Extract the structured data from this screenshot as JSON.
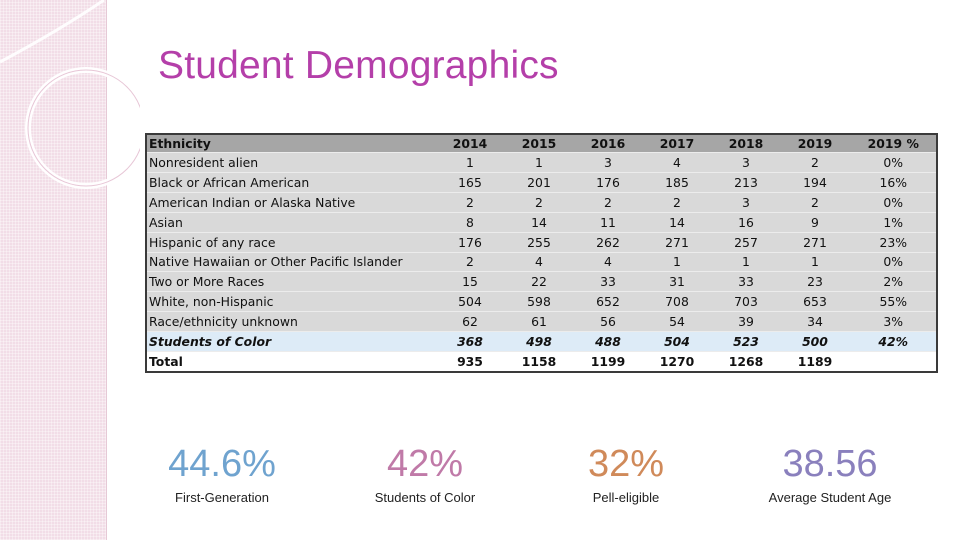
{
  "title": "Student Demographics",
  "table": {
    "headers": [
      "Ethnicity",
      "2014",
      "2015",
      "2016",
      "2017",
      "2018",
      "2019",
      "2019 %"
    ],
    "rows": [
      [
        "Nonresident alien",
        "1",
        "1",
        "3",
        "4",
        "3",
        "2",
        "0%"
      ],
      [
        "Black or African American",
        "165",
        "201",
        "176",
        "185",
        "213",
        "194",
        "16%"
      ],
      [
        "American Indian or Alaska Native",
        "2",
        "2",
        "2",
        "2",
        "3",
        "2",
        "0%"
      ],
      [
        "Asian",
        "8",
        "14",
        "11",
        "14",
        "16",
        "9",
        "1%"
      ],
      [
        "Hispanic of any race",
        "176",
        "255",
        "262",
        "271",
        "257",
        "271",
        "23%"
      ],
      [
        "Native Hawaiian or Other Pacific Islander",
        "2",
        "4",
        "4",
        "1",
        "1",
        "1",
        "0%"
      ],
      [
        "Two or More Races",
        "15",
        "22",
        "33",
        "31",
        "33",
        "23",
        "2%"
      ],
      [
        "White, non-Hispanic",
        "504",
        "598",
        "652",
        "708",
        "703",
        "653",
        "55%"
      ],
      [
        "Race/ethnicity unknown",
        "62",
        "61",
        "56",
        "54",
        "39",
        "34",
        "3%"
      ],
      [
        "Students of Color",
        "368",
        "498",
        "488",
        "504",
        "523",
        "500",
        "42%"
      ],
      [
        "Total",
        "935",
        "1158",
        "1199",
        "1270",
        "1268",
        "1189",
        ""
      ]
    ]
  },
  "stats": [
    {
      "value": "44.6%",
      "label": "First-Generation",
      "color": "#6fa3cf"
    },
    {
      "value": "42%",
      "label": "Students of Color",
      "color": "#c07aa8"
    },
    {
      "value": "32%",
      "label": "Pell-eligible",
      "color": "#d08a5a"
    },
    {
      "value": "38.56",
      "label": "Average Student Age",
      "color": "#8a80bd"
    }
  ],
  "colors": {
    "title": "#b43fa9",
    "side_band": "#f2dde7",
    "header_row": "#a6a6a6",
    "body_row": "#d9d9d9",
    "highlight_row": "#ddebf7"
  }
}
